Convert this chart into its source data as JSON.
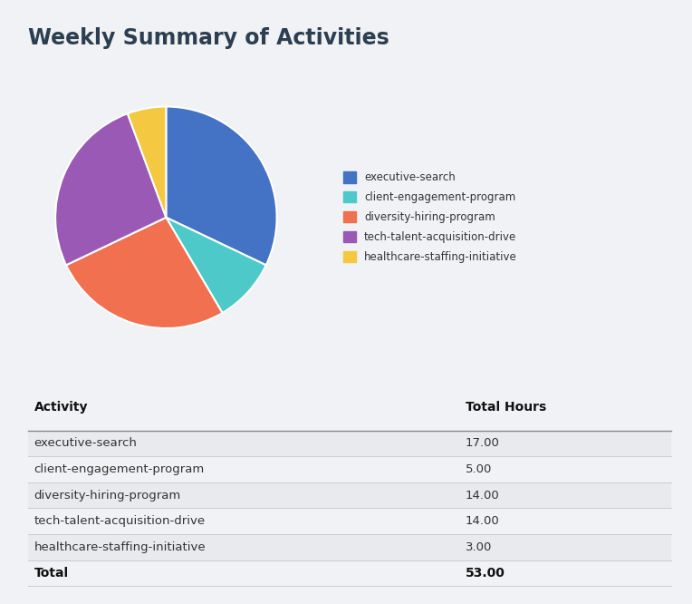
{
  "title": "Weekly Summary of Activities",
  "title_color": "#2c3e50",
  "background_color": "#f0f2f5",
  "pie_data": [
    17,
    5,
    14,
    14,
    3
  ],
  "labels": [
    "executive-search",
    "client-engagement-program",
    "diversity-hiring-program",
    "tech-talent-acquisition-drive",
    "healthcare-staffing-initiative"
  ],
  "hours": [
    17.0,
    5.0,
    14.0,
    14.0,
    3.0
  ],
  "total": 53.0,
  "colors": [
    "#4472c4",
    "#4ec9c9",
    "#f07050",
    "#9b59b6",
    "#f5c842"
  ],
  "table_header": [
    "Activity",
    "Total Hours"
  ],
  "odd_row_color": "#e8eaed",
  "even_row_color": "#f0f2f5",
  "header_line_color": "#888888",
  "row_line_color": "#cccccc",
  "text_color": "#333333",
  "total_label": "Total",
  "total_value": "53.00"
}
